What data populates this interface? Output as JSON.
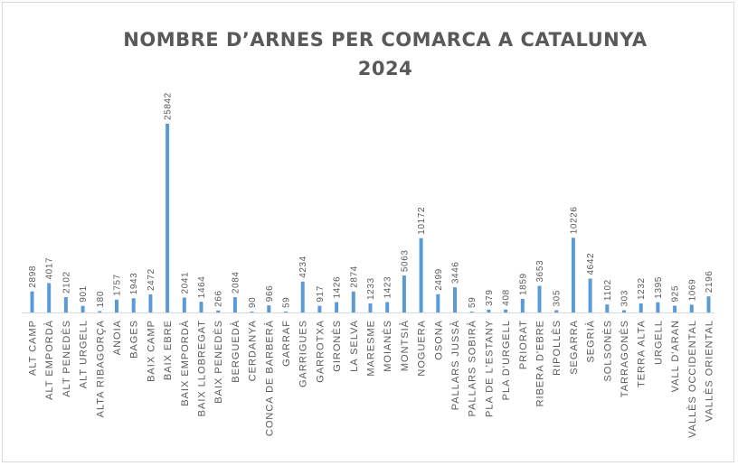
{
  "chart_data": {
    "type": "bar",
    "title_line1": "NOMBRE D’ARNES PER COMARCA A CATALUNYA",
    "title_line2": "2024",
    "xlabel": "",
    "ylabel": "",
    "ylim": [
      0,
      27000
    ],
    "grid": false,
    "legend": "none",
    "bar_color": "#5b9bd5",
    "categories": [
      "ALT CAMP",
      "ALT EMPORDÀ",
      "ALT PENEDÈS",
      "ALT URGELL",
      "ALTA RIBAGORÇA",
      "ANOIA",
      "BAGES",
      "BAIX CAMP",
      "BAIX EBRE",
      "BAIX EMPORDÀ",
      "BAIX LLOBREGAT",
      "BAIX PENEDÈS",
      "BERGUEDÀ",
      "CERDANYA",
      "CONCA DE BARBERÀ",
      "GARRAF",
      "GARRIGUES",
      "GARROTXA",
      "GIRONÈS",
      "LA SELVA",
      "MARESME",
      "MOIANÈS",
      "MONTSIÀ",
      "NOGUERA",
      "OSONA",
      "PALLARS JUSSÀ",
      "PALLARS SOBIRÀ",
      "PLA DE L'ESTANY",
      "PLA D'URGELL",
      "PRIORAT",
      "RIBERA D'EBRE",
      "RIPOLLÈS",
      "SEGARRA",
      "SEGRIÀ",
      "SOLSONÈS",
      "TARRAGONÈS",
      "TERRA ALTA",
      "URGELL",
      "VALL D'ARAN",
      "VALLÈS OCCIDENTAL",
      "VALLÈS ORIENTAL"
    ],
    "values": [
      2898,
      4017,
      2102,
      901,
      180,
      1757,
      1943,
      2472,
      25842,
      2041,
      1464,
      266,
      2084,
      90,
      966,
      59,
      4234,
      917,
      1426,
      2874,
      1233,
      1423,
      5063,
      10172,
      2499,
      3446,
      59,
      379,
      408,
      1859,
      3653,
      305,
      10226,
      4642,
      1102,
      303,
      1232,
      1395,
      925,
      1069,
      2196
    ]
  }
}
